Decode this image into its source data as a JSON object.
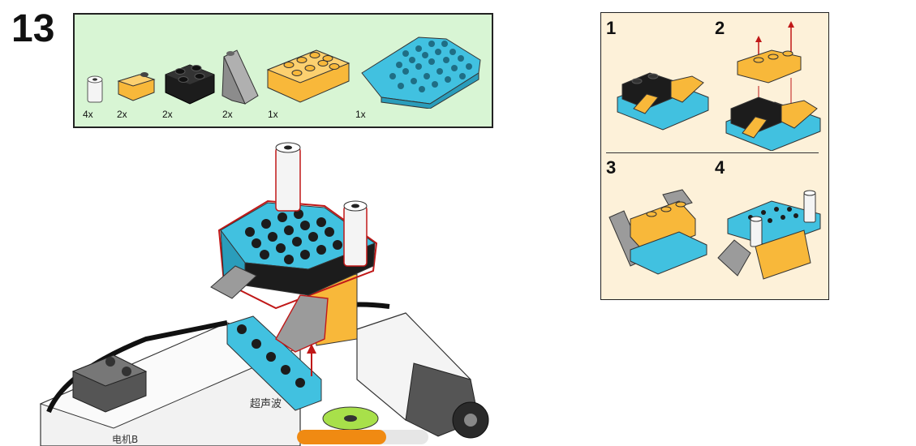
{
  "step": {
    "number": "13"
  },
  "parts_list": {
    "items": [
      {
        "qty": "4x",
        "name": "white-bush"
      },
      {
        "qty": "2x",
        "name": "yellow-slope"
      },
      {
        "qty": "2x",
        "name": "black-brick-2x2"
      },
      {
        "qty": "2x",
        "name": "grey-slope"
      },
      {
        "qty": "1x",
        "name": "yellow-brick-2x4"
      },
      {
        "qty": "1x",
        "name": "blue-wedge-plate"
      }
    ]
  },
  "substeps": [
    {
      "number": "1"
    },
    {
      "number": "2"
    },
    {
      "number": "3"
    },
    {
      "number": "4"
    }
  ],
  "main_assembly": {
    "sensor_label": "超声波",
    "motor_label": "电机B"
  },
  "progress": {
    "fraction": 0.68
  },
  "colors": {
    "parts_bg": "#d8f5d4",
    "substep_bg": "#fdf1d9",
    "lego_blue": "#41c1e0",
    "lego_yellow": "#f8b83a",
    "lego_black": "#1c1c1c",
    "lego_grey": "#9b9b9b",
    "arrow_red": "#c01818",
    "progress_orange": "#f08a12"
  }
}
